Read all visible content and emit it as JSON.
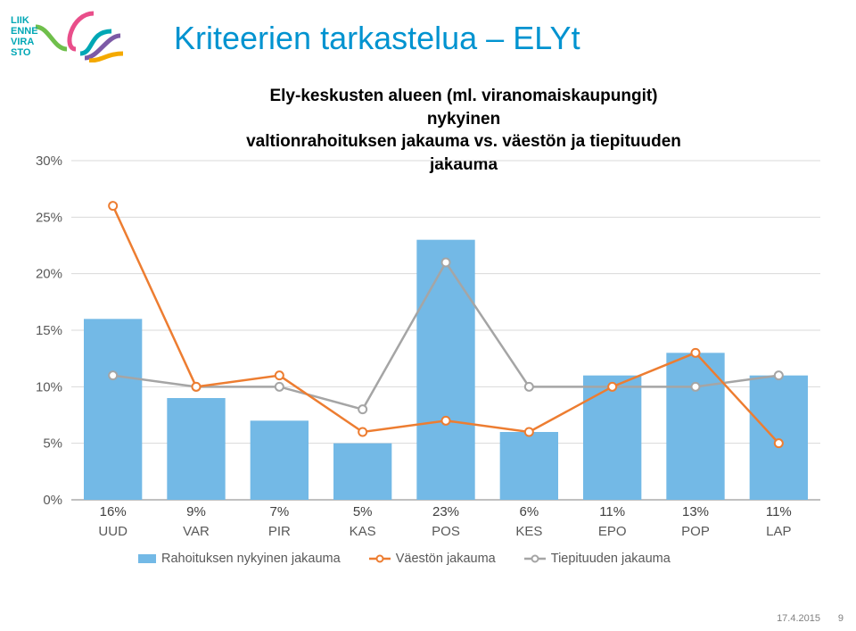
{
  "title": "Kriteerien tarkastelua – ELYt",
  "subtitle_line1": "Ely-keskusten alueen (ml. viranomaiskaupungit) nykyinen",
  "subtitle_line2": "valtionrahoituksen jakauma vs. väestön ja tiepituuden",
  "subtitle_line3": "jakauma",
  "chart": {
    "type": "bar+line",
    "categories": [
      "UUD",
      "VAR",
      "PIR",
      "KAS",
      "POS",
      "KES",
      "EPO",
      "POP",
      "LAP"
    ],
    "bar_values_pct": [
      16,
      9,
      7,
      5,
      23,
      6,
      11,
      13,
      11
    ],
    "bar_labels": [
      "16%",
      "9%",
      "7%",
      "5%",
      "23%",
      "6%",
      "11%",
      "13%",
      "11%"
    ],
    "series2_values_pct": [
      26,
      10,
      11,
      6,
      7,
      6,
      10,
      13,
      5
    ],
    "series3_values_pct": [
      11,
      10,
      10,
      8,
      21,
      10,
      10,
      10,
      11
    ],
    "ylim": [
      0,
      30
    ],
    "ytick_step": 5,
    "yticks": [
      "0%",
      "5%",
      "10%",
      "15%",
      "20%",
      "25%",
      "30%"
    ],
    "bar_color": "#73b9e6",
    "series2_color": "#ed7d31",
    "series3_color": "#a5a5a5",
    "grid_color": "#d9d9d9",
    "background_color": "#ffffff",
    "axis_label_color": "#595959",
    "title_fontsize": 36,
    "subtitle_fontsize": 19,
    "label_fontsize": 15
  },
  "legend": {
    "s1": "Rahoituksen nykyinen jakauma",
    "s2": "Väestön jakauma",
    "s3": "Tiepituuden jakauma"
  },
  "footer": {
    "date": "17.4.2015",
    "page": "9"
  },
  "logo_brand": "LIIKENNEVIRASTO"
}
